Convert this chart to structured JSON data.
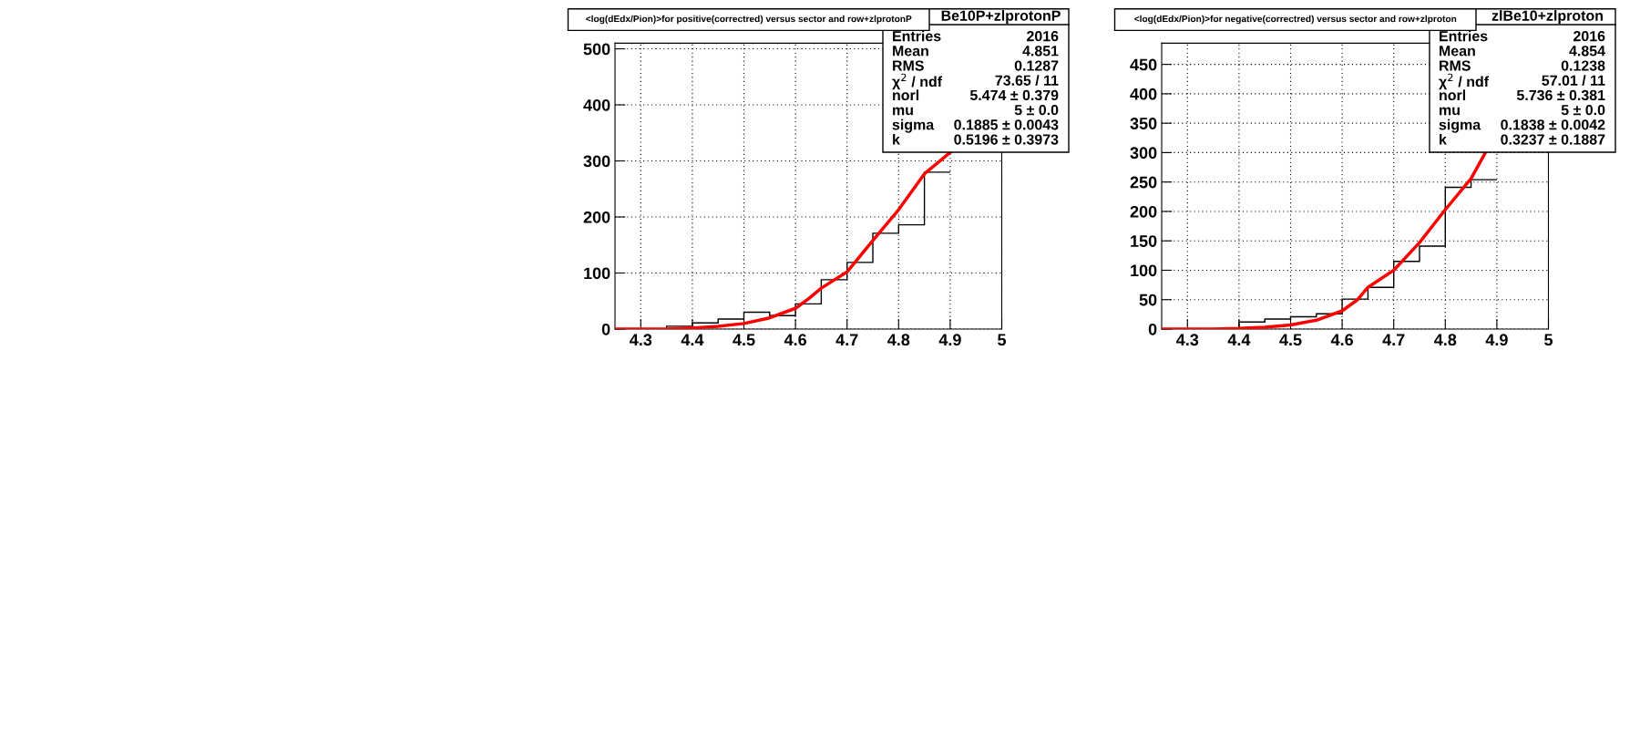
{
  "chart_data": [
    {
      "type": "histogram",
      "title": "<log(dEdx/Pion)>for positive(correctred) versus sector and row+zlprotonP",
      "bins": [
        4.25,
        4.3,
        4.35,
        4.4,
        4.45,
        4.5,
        4.55,
        4.6,
        4.65,
        4.7,
        4.75,
        4.8,
        4.85,
        4.9
      ],
      "values": [
        0,
        0,
        5,
        11,
        18,
        30,
        24,
        45,
        88,
        119,
        171,
        186,
        280
      ],
      "color": "#000000",
      "series": [
        {
          "type": "line",
          "color": "#ff0000",
          "x": [
            4.25,
            4.3,
            4.35,
            4.4,
            4.45,
            4.5,
            4.55,
            4.6,
            4.625,
            4.65,
            4.7,
            4.75,
            4.8,
            4.85,
            4.9
          ],
          "values": [
            0,
            0,
            0,
            2,
            5,
            10,
            20,
            37,
            54,
            73,
            102,
            158,
            213,
            277,
            315
          ]
        }
      ],
      "xlim": [
        4.25,
        5
      ],
      "xticks": [
        4.3,
        4.4,
        4.5,
        4.6,
        4.7,
        4.8,
        4.9,
        5
      ],
      "ylim": [
        0,
        510
      ],
      "yticks": [
        0,
        100,
        200,
        300,
        400,
        500
      ],
      "grid": true,
      "annotations": [
        "Be10P+zlprotonP",
        "Entries\t2016",
        "Mean\t4.851",
        "RMS\t0.1287",
        "χ$^{2}$ / ndf\t73.65 / 11",
        "norl\t5.474 ± 0.379",
        "mu\t5 ± 0.0",
        "sigma\t0.1885 ± 0.0043",
        "k\t0.5196 ± 0.3973"
      ]
    },
    {
      "type": "histogram",
      "title": "<log(dEdx/Pion)>for negative(correctred) versus sector and row+zlproton",
      "bins": [
        4.25,
        4.3,
        4.35,
        4.4,
        4.45,
        4.5,
        4.55,
        4.6,
        4.65,
        4.7,
        4.75,
        4.8,
        4.85,
        4.9
      ],
      "values": [
        0,
        0,
        0,
        12,
        17,
        21,
        26,
        51,
        71,
        115,
        141,
        241,
        254
      ],
      "color": "#000000",
      "series": [
        {
          "type": "line",
          "color": "#ff0000",
          "x": [
            4.25,
            4.3,
            4.35,
            4.4,
            4.45,
            4.5,
            4.55,
            4.6,
            4.63,
            4.65,
            4.7,
            4.75,
            4.8,
            4.85,
            4.879
          ],
          "values": [
            0,
            0,
            0,
            1,
            3,
            7,
            15,
            31,
            50,
            71,
            100,
            147,
            203,
            256,
            302
          ]
        }
      ],
      "xlim": [
        4.25,
        5
      ],
      "xticks": [
        4.3,
        4.4,
        4.5,
        4.6,
        4.7,
        4.8,
        4.9,
        5
      ],
      "ylim": [
        0,
        486
      ],
      "yticks": [
        0,
        50,
        100,
        150,
        200,
        250,
        300,
        350,
        400,
        450
      ],
      "grid": true,
      "annotations": [
        "zlBe10+zlproton",
        "Entries\t2016",
        "Mean\t4.854",
        "RMS\t0.1238",
        "χ$^{2}$ / ndf\t57.01 / 11",
        "norl\t5.736 ± 0.381",
        "mu\t5 ± 0.0",
        "sigma\t0.1838 ± 0.0042",
        "k\t0.3237 ± 0.1887"
      ]
    }
  ]
}
